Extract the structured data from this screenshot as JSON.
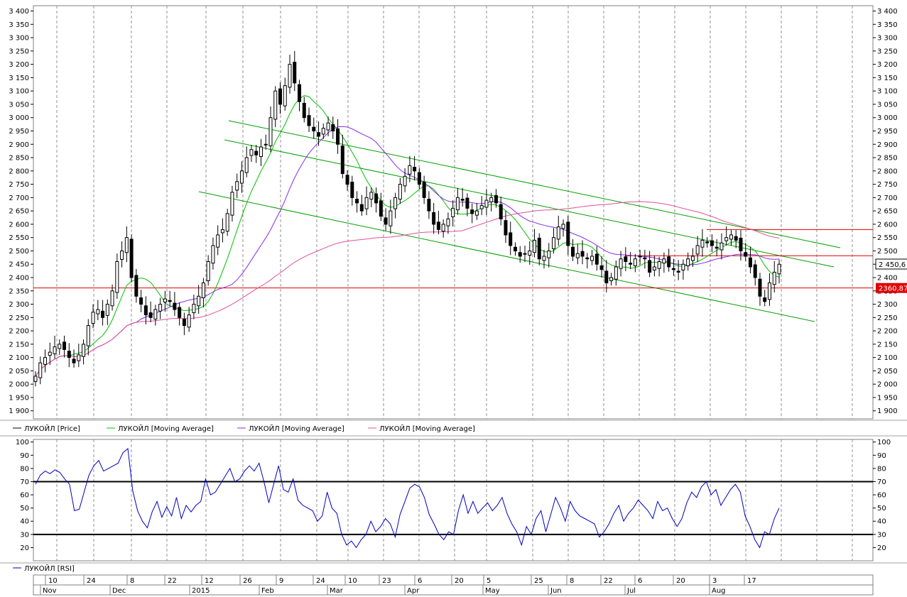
{
  "chart_data": [
    {
      "type": "candlestick",
      "ylim": [
        1870,
        3420
      ],
      "yticks": [
        "3 400",
        "3 350",
        "3 300",
        "3 250",
        "3 200",
        "3 150",
        "3 100",
        "3 050",
        "3 000",
        "2 950",
        "2 900",
        "2 850",
        "2 800",
        "2 750",
        "2 700",
        "2 650",
        "2 600",
        "2 550",
        "2 500",
        "2 450",
        "2 400",
        "2 350",
        "2 300",
        "2 250",
        "2 200",
        "2 150",
        "2 100",
        "2 050",
        "2 000",
        "1 950",
        "1 900"
      ],
      "ytick_values": [
        3400,
        3350,
        3300,
        3250,
        3200,
        3150,
        3100,
        3050,
        3000,
        2950,
        2900,
        2850,
        2800,
        2750,
        2700,
        2650,
        2600,
        2550,
        2500,
        2450,
        2400,
        2350,
        2300,
        2250,
        2200,
        2150,
        2100,
        2050,
        2000,
        1950,
        1900
      ],
      "last_price_label": "2 450,6",
      "last_price": 2450.6,
      "support_label": "2360,87",
      "support": 2360.87,
      "horizontal_lines": [
        2360.87,
        2482,
        2580
      ],
      "legend": [
        "ЛУКОЙЛ [Price]",
        "ЛУКОЙЛ [Moving Average]",
        "ЛУКОЙЛ [Moving Average]",
        "ЛУКОЙЛ [Moving Average]"
      ],
      "legend_colors": [
        "#000000",
        "#00c000",
        "#8a2be2",
        "#e0509a"
      ],
      "close": [
        2030,
        2080,
        2100,
        2120,
        2140,
        2150,
        2130,
        2100,
        2080,
        2110,
        2150,
        2220,
        2270,
        2280,
        2250,
        2300,
        2350,
        2460,
        2500,
        2550,
        2400,
        2330,
        2300,
        2260,
        2250,
        2280,
        2300,
        2320,
        2310,
        2280,
        2250,
        2220,
        2260,
        2300,
        2330,
        2380,
        2460,
        2520,
        2560,
        2580,
        2640,
        2720,
        2760,
        2800,
        2850,
        2880,
        2860,
        2890,
        2900,
        3000,
        3100,
        3050,
        3120,
        3200,
        3130,
        3060,
        3000,
        2970,
        2950,
        2930,
        2960,
        2980,
        2950,
        2900,
        2790,
        2750,
        2700,
        2680,
        2650,
        2700,
        2720,
        2680,
        2630,
        2600,
        2650,
        2700,
        2750,
        2780,
        2820,
        2800,
        2750,
        2700,
        2650,
        2600,
        2580,
        2600,
        2620,
        2660,
        2700,
        2690,
        2660,
        2640,
        2650,
        2670,
        2690,
        2700,
        2680,
        2620,
        2560,
        2520,
        2500,
        2480,
        2490,
        2500,
        2540,
        2470,
        2480,
        2500,
        2550,
        2590,
        2600,
        2520,
        2480,
        2490,
        2480,
        2470,
        2480,
        2450,
        2430,
        2380,
        2400,
        2440,
        2470,
        2460,
        2450,
        2470,
        2480,
        2470,
        2420,
        2440,
        2460,
        2470,
        2440,
        2430,
        2420,
        2450,
        2470,
        2480,
        2520,
        2540,
        2530,
        2520,
        2510,
        2530,
        2550,
        2560,
        2540,
        2500,
        2480,
        2440,
        2400,
        2330,
        2310,
        2380,
        2420,
        2450
      ]
    },
    {
      "type": "line",
      "ylim": [
        10,
        102
      ],
      "ytick_values": [
        100,
        90,
        80,
        70,
        60,
        50,
        40,
        30,
        20
      ],
      "yticks": [
        "100",
        "90",
        "80",
        "70",
        "60",
        "50",
        "40",
        "30",
        "20"
      ],
      "horizontal_lines": [
        70,
        30
      ],
      "legend": [
        "ЛУКОЙЛ [RSI]"
      ],
      "legend_colors": [
        "#0000c0"
      ],
      "values": [
        68,
        75,
        78,
        76,
        79,
        77,
        72,
        68,
        48,
        49,
        62,
        75,
        82,
        86,
        78,
        80,
        82,
        84,
        92,
        95,
        63,
        48,
        40,
        35,
        47,
        55,
        43,
        51,
        44,
        58,
        42,
        52,
        47,
        52,
        55,
        72,
        60,
        62,
        68,
        74,
        80,
        70,
        72,
        78,
        82,
        78,
        84,
        70,
        54,
        68,
        82,
        64,
        62,
        72,
        56,
        52,
        50,
        48,
        40,
        44,
        62,
        50,
        46,
        30,
        22,
        25,
        20,
        26,
        30,
        40,
        32,
        36,
        42,
        38,
        28,
        45,
        55,
        65,
        68,
        66,
        58,
        45,
        38,
        30,
        26,
        32,
        30,
        48,
        60,
        46,
        55,
        46,
        50,
        54,
        48,
        52,
        58,
        46,
        38,
        32,
        22,
        36,
        30,
        42,
        48,
        32,
        45,
        58,
        50,
        40,
        55,
        48,
        44,
        42,
        40,
        38,
        28,
        32,
        38,
        46,
        52,
        40,
        46,
        50,
        56,
        52,
        48,
        42,
        55,
        48,
        50,
        42,
        36,
        42,
        54,
        62,
        58,
        66,
        70,
        60,
        64,
        52,
        58,
        64,
        68,
        62,
        44,
        36,
        26,
        20,
        32,
        30,
        42,
        50
      ]
    },
    {
      "type": "date-axis",
      "days": [
        "10",
        "24",
        "8",
        "22",
        "12",
        "26",
        "9",
        "24",
        "10",
        "23",
        "6",
        "20",
        "5",
        "25",
        "8",
        "22",
        "6",
        "20",
        "3",
        "17"
      ],
      "months": [
        "Nov",
        "Dec",
        "2015",
        "Feb",
        "Mar",
        "Apr",
        "May",
        "Jun",
        "Jul",
        "Aug"
      ]
    }
  ]
}
